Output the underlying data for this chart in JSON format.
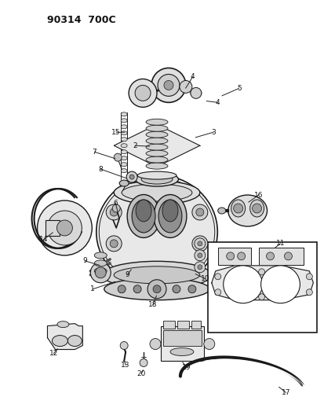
{
  "title": "90314  700C",
  "bg_color": "#ffffff",
  "line_color": "#1a1a1a",
  "text_color": "#111111",
  "gray_fill": "#d0d0d0",
  "dark_fill": "#888888",
  "mid_fill": "#b0b0b0"
}
